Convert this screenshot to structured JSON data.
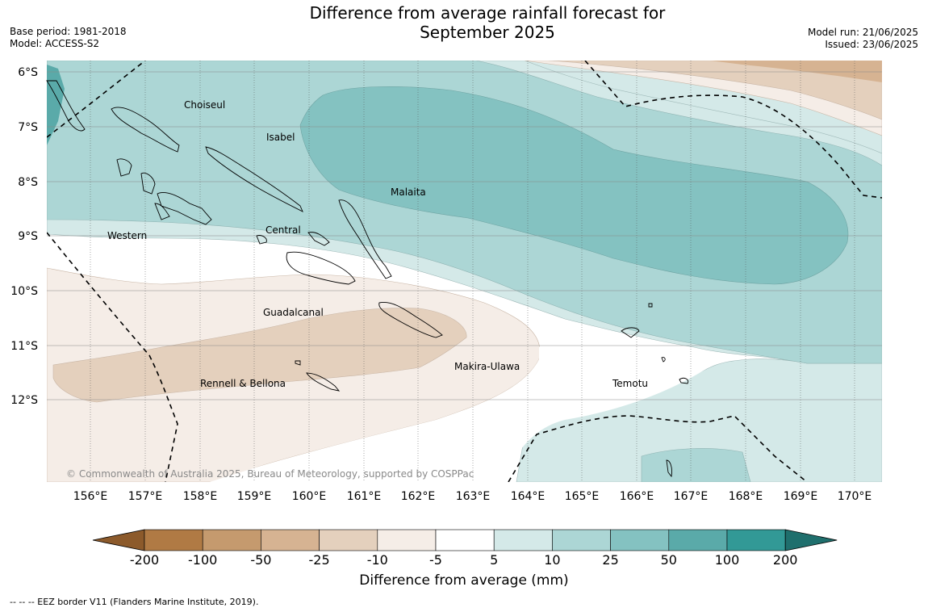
{
  "header": {
    "title_line1": "Difference from average rainfall forecast for",
    "title_line2": "September 2025",
    "base_period": "Base period: 1981-2018",
    "model": "Model: ACCESS-S2",
    "model_run": "Model run: 21/06/2025",
    "issued": "Issued: 23/06/2025"
  },
  "map": {
    "longitude_labels": [
      "156°E",
      "157°E",
      "158°E",
      "159°E",
      "160°E",
      "161°E",
      "162°E",
      "163°E",
      "164°E",
      "165°E",
      "166°E",
      "167°E",
      "168°E",
      "169°E",
      "170°E"
    ],
    "latitude_labels": [
      "6°S",
      "7°S",
      "8°S",
      "9°S",
      "10°S",
      "11°S",
      "12°S"
    ],
    "places": [
      "Choiseul",
      "Isabel",
      "Malaita",
      "Western",
      "Central",
      "Guadalcanal",
      "Makira-Ulawa",
      "Rennell & Bellona",
      "Temotu"
    ],
    "copyright": "© Commonwealth of Australia 2025, Bureau of Meteorology, supported by COSPPac"
  },
  "legend": {
    "tick_labels": [
      "-200",
      "-100",
      "-50",
      "-25",
      "-10",
      "-5",
      "5",
      "10",
      "25",
      "50",
      "100",
      "200"
    ],
    "colors": [
      "#8c5a2b",
      "#b07a44",
      "#c59a6e",
      "#d6b392",
      "#e4d0bd",
      "#f5ede7",
      "#ffffff",
      "#d4e9e8",
      "#acd6d5",
      "#84c2c1",
      "#5aaaa9",
      "#329996",
      "#1f6f6d"
    ],
    "label": "Difference from average (mm)"
  },
  "footnote": "-- -- -- EEZ border V11 (Flanders Marine Institute, 2019)."
}
